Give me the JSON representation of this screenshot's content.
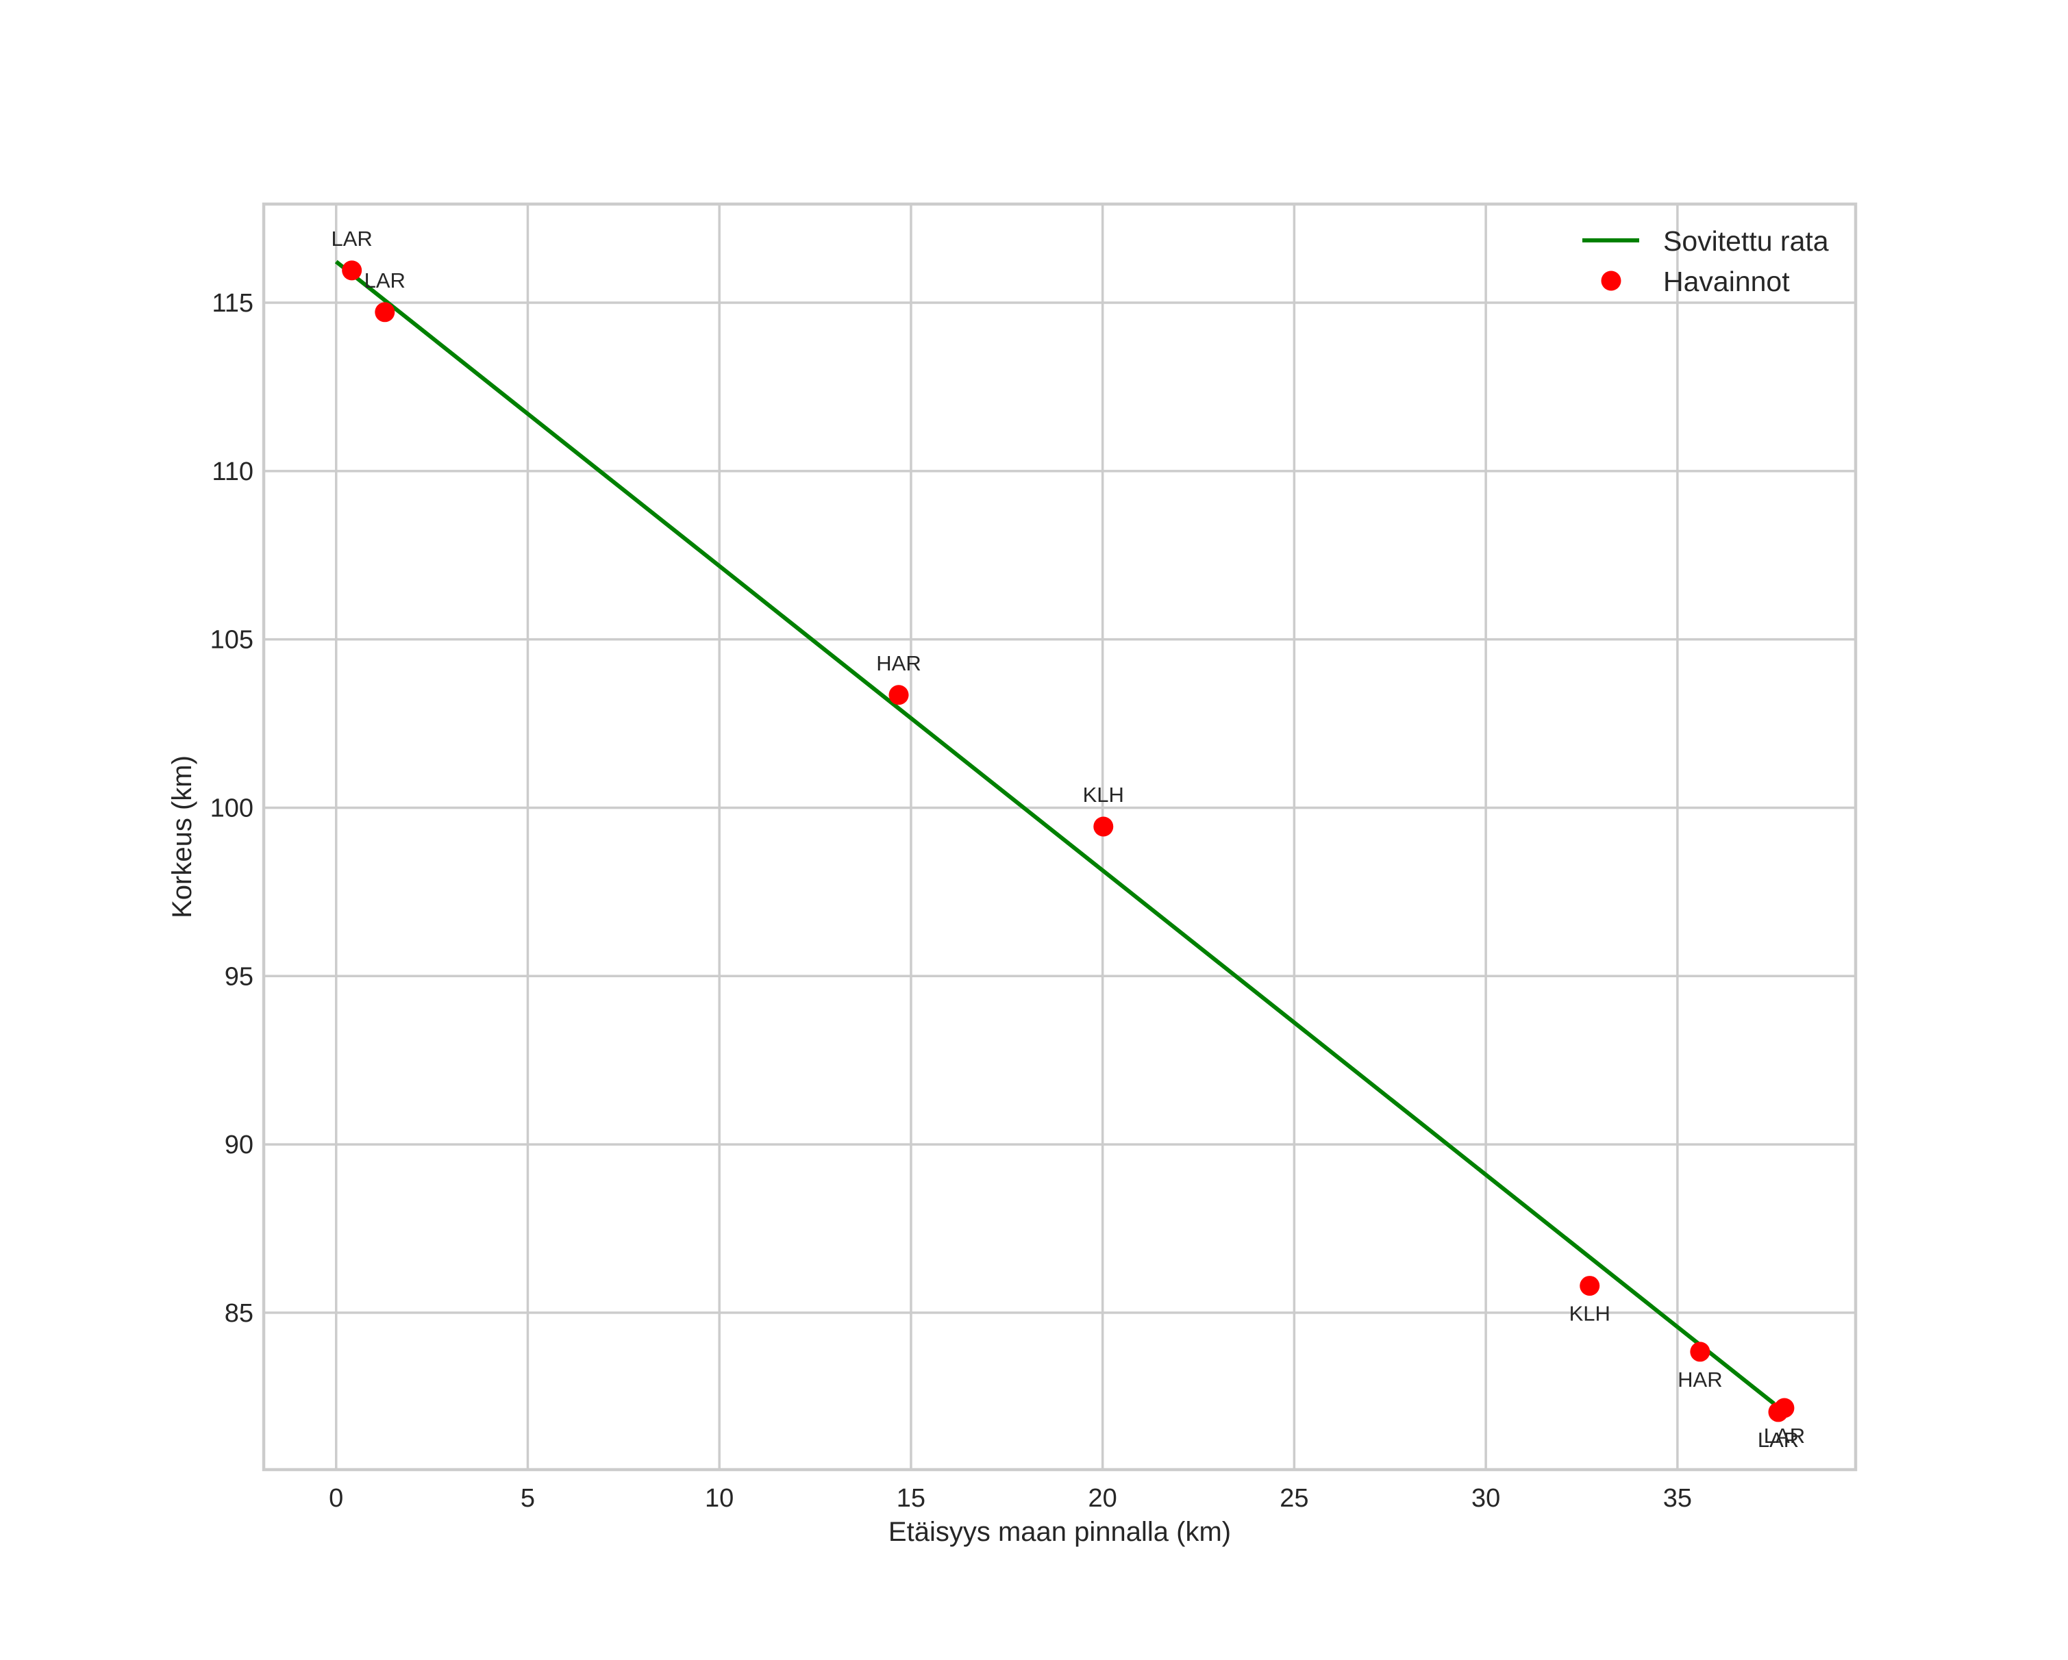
{
  "chart_data": {
    "type": "line+scatter",
    "title": "",
    "xlabel": "Etäisyys maan pinnalla (km)",
    "ylabel": "Korkeus (km)",
    "xlim": [
      -1.89,
      39.65
    ],
    "ylim": [
      80.34,
      117.93
    ],
    "xticks": [
      0,
      5,
      10,
      15,
      20,
      25,
      30,
      35
    ],
    "yticks": [
      85,
      90,
      95,
      100,
      105,
      110,
      115
    ],
    "grid": true,
    "legend_position": "upper right",
    "series": [
      {
        "name": "Sovitettu rata",
        "type": "line",
        "color": "#008000",
        "x": [
          0.0,
          37.52
        ],
        "y": [
          116.22,
          82.3
        ]
      },
      {
        "name": "Havainnot",
        "type": "scatter",
        "color": "#ff0000",
        "points": [
          {
            "x": 0.41,
            "y": 115.96,
            "label": "LAR",
            "label_pos": "above"
          },
          {
            "x": 1.27,
            "y": 114.72,
            "label": "LAR",
            "label_pos": "above"
          },
          {
            "x": 14.68,
            "y": 103.35,
            "label": "HAR",
            "label_pos": "above"
          },
          {
            "x": 20.02,
            "y": 99.44,
            "label": "KLH",
            "label_pos": "above"
          },
          {
            "x": 32.71,
            "y": 85.8,
            "label": "KLH",
            "label_pos": "below"
          },
          {
            "x": 35.59,
            "y": 83.84,
            "label": "HAR",
            "label_pos": "below"
          },
          {
            "x": 37.63,
            "y": 82.05,
            "label": "LAR",
            "label_pos": "below"
          },
          {
            "x": 37.79,
            "y": 82.17,
            "label": "LAR",
            "label_pos": "below"
          }
        ]
      }
    ]
  },
  "legend": {
    "items": [
      {
        "label": "Sovitettu rata",
        "kind": "line",
        "color": "#008000"
      },
      {
        "label": "Havainnot",
        "kind": "marker",
        "color": "#ff0000"
      }
    ]
  },
  "colors": {
    "grid": "#cccccc",
    "text": "#262626",
    "line": "#008000",
    "marker": "#ff0000"
  }
}
